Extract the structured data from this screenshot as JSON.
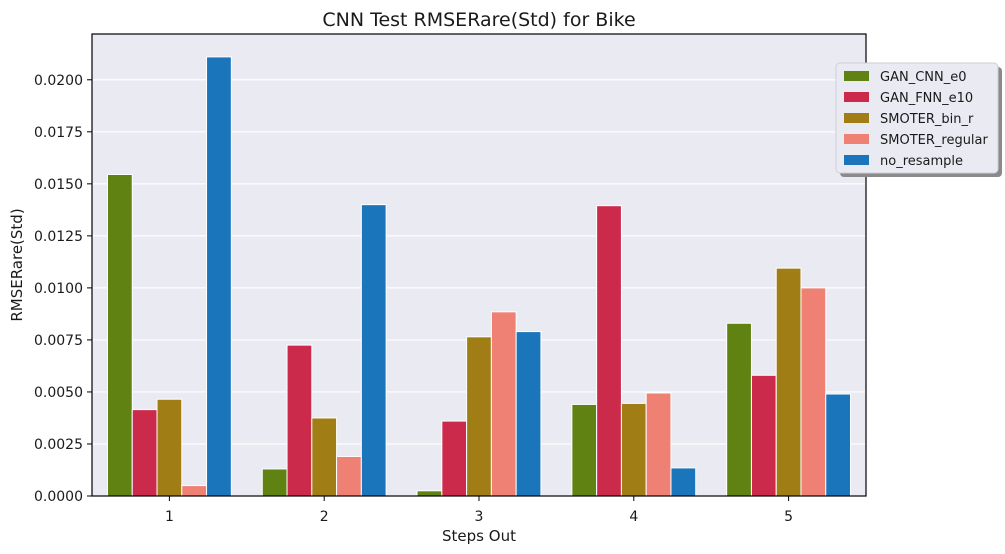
{
  "chart_data": {
    "type": "bar",
    "title": "CNN Test RMSERare(Std) for Bike",
    "xlabel": "Steps Out",
    "ylabel": "RMSERare(Std)",
    "categories": [
      "1",
      "2",
      "3",
      "4",
      "5"
    ],
    "ylim": [
      0,
      0.0222
    ],
    "yticks": [
      "0.0000",
      "0.0025",
      "0.0050",
      "0.0075",
      "0.0100",
      "0.0125",
      "0.0150",
      "0.0175",
      "0.0200"
    ],
    "grid": true,
    "legend_position": "right",
    "series": [
      {
        "name": "GAN_CNN_e0",
        "color": "#5f8212",
        "values": [
          0.01545,
          0.0013,
          0.00025,
          0.0044,
          0.0083
        ]
      },
      {
        "name": "GAN_FNN_e10",
        "color": "#cb2a4b",
        "values": [
          0.00415,
          0.00725,
          0.0036,
          0.01395,
          0.0058
        ]
      },
      {
        "name": "SMOTER_bin_r",
        "color": "#a07e15",
        "values": [
          0.00465,
          0.00375,
          0.00765,
          0.00445,
          0.01095
        ]
      },
      {
        "name": "SMOTER_regular",
        "color": "#ee8074",
        "values": [
          0.0005,
          0.0019,
          0.00885,
          0.00495,
          0.01
        ]
      },
      {
        "name": "no_resample",
        "color": "#1b75bb",
        "values": [
          0.0211,
          0.014,
          0.0079,
          0.00135,
          0.0049
        ]
      }
    ]
  }
}
